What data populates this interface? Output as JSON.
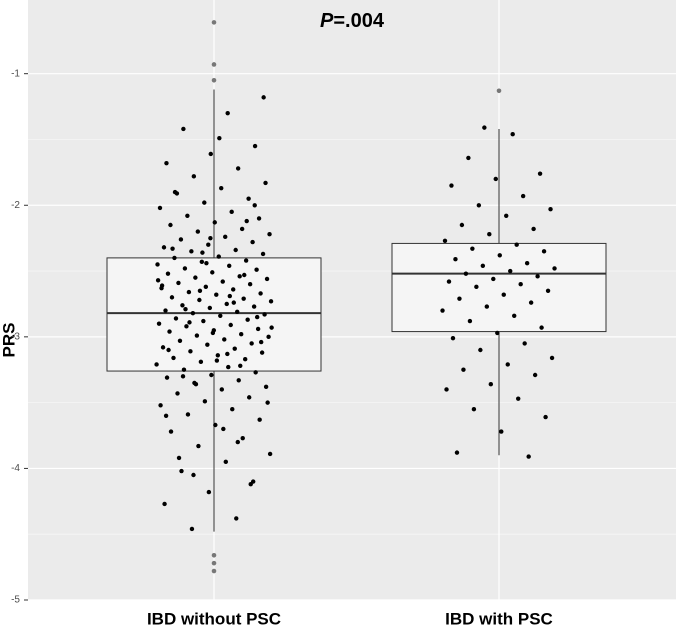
{
  "chart_data": {
    "type": "boxplot",
    "annotation": {
      "italic": "P",
      "text": "=.004"
    },
    "y_label": "PRS",
    "categories": [
      "IBD without PSC",
      "IBD with PSC"
    ],
    "ylim": [
      -5,
      -0.44
    ],
    "yticks": [
      -5,
      -4,
      -3,
      -2,
      -1
    ],
    "grid": true,
    "box_color": "#f5f5f5",
    "point_color": "#000000",
    "outlier_color": "#777777",
    "groups": [
      {
        "whisker_low": -4.48,
        "q1": -3.26,
        "median": -2.82,
        "q3": -2.4,
        "whisker_high": -1.12,
        "outliers": [
          -0.61,
          -0.93,
          -1.05,
          -4.66,
          -4.72,
          -4.78
        ],
        "points": [
          -1.3,
          -1.42,
          -1.55,
          -1.61,
          -1.68,
          -1.72,
          -1.78,
          -1.83,
          -1.87,
          -1.91,
          -1.95,
          -1.98,
          -2.02,
          -2.05,
          -2.08,
          -2.1,
          -2.13,
          -2.15,
          -2.18,
          -2.2,
          -2.22,
          -2.24,
          -2.26,
          -2.28,
          -2.3,
          -2.32,
          -2.34,
          -2.35,
          -2.37,
          -2.39,
          -2.4,
          -2.42,
          -2.43,
          -2.45,
          -2.46,
          -2.48,
          -2.49,
          -2.51,
          -2.52,
          -2.54,
          -2.55,
          -2.56,
          -2.58,
          -2.59,
          -2.6,
          -2.62,
          -2.63,
          -2.64,
          -2.66,
          -2.67,
          -2.68,
          -2.7,
          -2.71,
          -2.72,
          -2.73,
          -2.75,
          -2.76,
          -2.77,
          -2.78,
          -2.8,
          -2.81,
          -2.82,
          -2.83,
          -2.84,
          -2.86,
          -2.87,
          -2.88,
          -2.9,
          -2.91,
          -2.92,
          -2.94,
          -2.95,
          -2.96,
          -2.98,
          -2.99,
          -3.0,
          -3.02,
          -3.03,
          -3.05,
          -3.06,
          -3.08,
          -3.09,
          -3.11,
          -3.12,
          -3.14,
          -3.16,
          -3.17,
          -3.19,
          -3.21,
          -3.23,
          -3.25,
          -3.27,
          -3.29,
          -3.31,
          -3.33,
          -3.35,
          -3.38,
          -3.4,
          -3.43,
          -3.46,
          -3.49,
          -3.52,
          -3.55,
          -3.59,
          -3.63,
          -3.67,
          -3.72,
          -3.77,
          -3.83,
          -3.89,
          -3.95,
          -4.02,
          -4.1,
          -4.18,
          -4.27,
          -4.38,
          -4.46,
          -1.18,
          -1.49,
          -1.9,
          -2.12,
          -2.36,
          -2.57,
          -2.69,
          -2.79,
          -2.85,
          -2.97,
          -3.1,
          -3.22,
          -3.36,
          -3.5,
          -3.7,
          -3.92,
          -4.12,
          -2.44,
          -2.61,
          -2.74,
          -2.89,
          -3.04,
          -3.18,
          -2.33,
          -2.53,
          -2.65,
          -2.93,
          -3.13,
          -3.3,
          -2.0,
          -2.25,
          -3.6,
          -3.8,
          -4.05
        ]
      },
      {
        "whisker_low": -3.9,
        "q1": -2.96,
        "median": -2.52,
        "q3": -2.29,
        "whisker_high": -1.42,
        "outliers": [
          -1.13
        ],
        "points": [
          -1.46,
          -1.64,
          -1.76,
          -1.8,
          -1.85,
          -1.93,
          -2.0,
          -2.03,
          -2.08,
          -2.15,
          -2.18,
          -2.22,
          -2.27,
          -2.3,
          -2.33,
          -2.35,
          -2.38,
          -2.41,
          -2.44,
          -2.46,
          -2.48,
          -2.5,
          -2.52,
          -2.54,
          -2.56,
          -2.58,
          -2.6,
          -2.62,
          -2.65,
          -2.68,
          -2.71,
          -2.74,
          -2.77,
          -2.8,
          -2.84,
          -2.88,
          -2.93,
          -2.97,
          -3.01,
          -3.05,
          -3.1,
          -3.16,
          -3.21,
          -3.25,
          -3.29,
          -3.36,
          -3.4,
          -3.47,
          -3.55,
          -3.61,
          -3.72,
          -3.88,
          -3.91,
          -1.41
        ]
      }
    ]
  }
}
